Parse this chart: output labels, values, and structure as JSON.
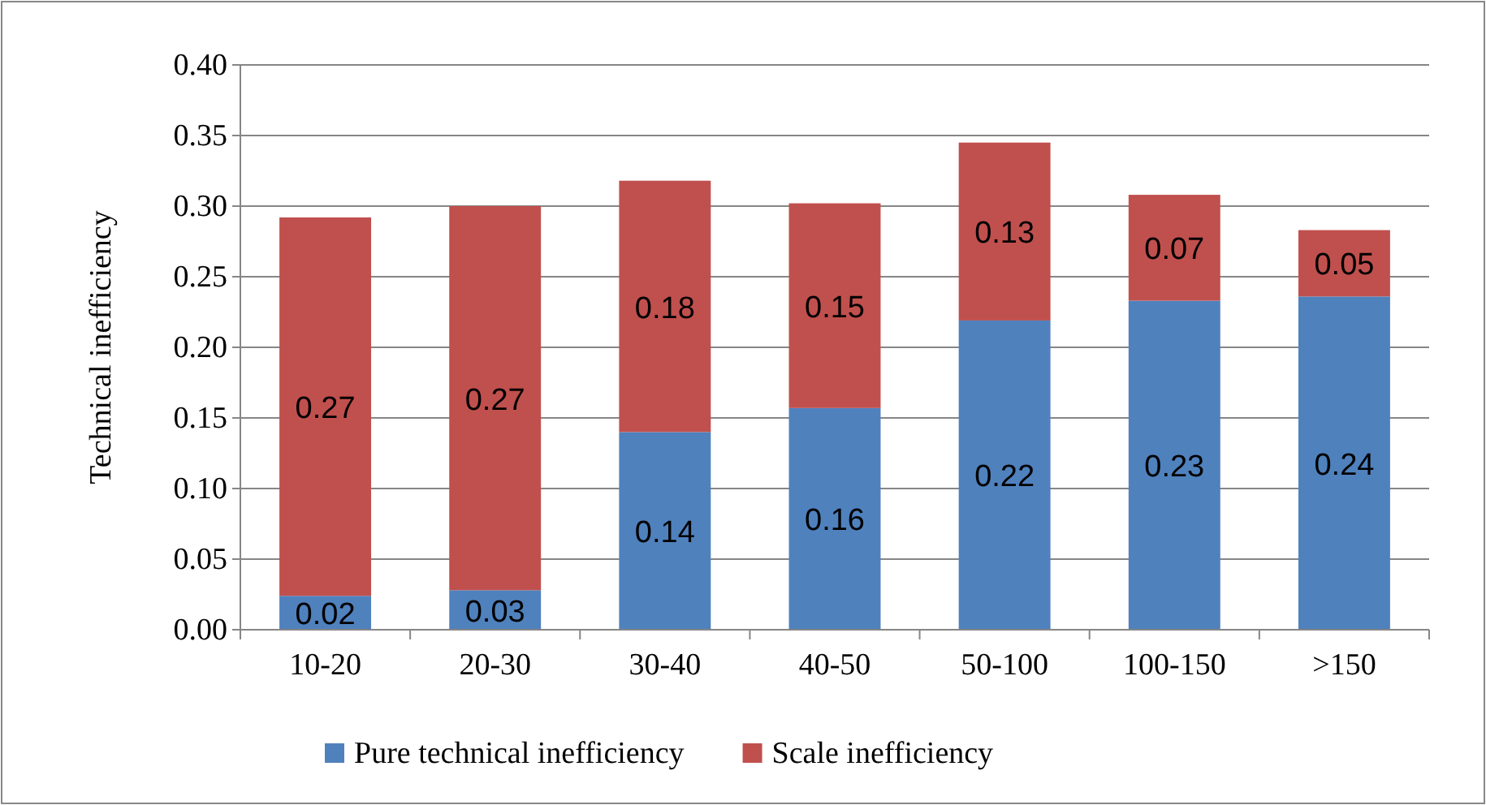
{
  "chart_data": {
    "type": "bar",
    "stacked": true,
    "ylabel": "Technical inefficiency",
    "categories": [
      "10-20",
      "20-30",
      "30-40",
      "40-50",
      "50-100",
      "100-150",
      ">150"
    ],
    "series": [
      {
        "name": "Pure technical inefficiency",
        "color": "#4f81bd",
        "values": [
          0.024,
          0.028,
          0.14,
          0.157,
          0.219,
          0.233,
          0.236
        ],
        "value_labels": [
          "0.02",
          "0.03",
          "0.14",
          "0.16",
          "0.22",
          "0.23",
          "0.24"
        ]
      },
      {
        "name": "Scale inefficiency",
        "color": "#c0504d",
        "values": [
          0.268,
          0.272,
          0.178,
          0.145,
          0.126,
          0.075,
          0.047
        ],
        "value_labels": [
          "0.27",
          "0.27",
          "0.18",
          "0.15",
          "0.13",
          "0.07",
          "0.05"
        ]
      }
    ],
    "ylim": [
      0,
      0.4
    ],
    "yticks": [
      {
        "value": 0,
        "label": "0.00"
      },
      {
        "value": 0.05,
        "label": "0.05"
      },
      {
        "value": 0.1,
        "label": "0.10"
      },
      {
        "value": 0.15,
        "label": "0.15"
      },
      {
        "value": 0.2,
        "label": "0.20"
      },
      {
        "value": 0.25,
        "label": "0.25"
      },
      {
        "value": 0.3,
        "label": "0.30"
      },
      {
        "value": 0.35,
        "label": "0.35"
      },
      {
        "value": 0.4,
        "label": "0.40"
      }
    ],
    "grid": "y",
    "legend": "bottom"
  }
}
